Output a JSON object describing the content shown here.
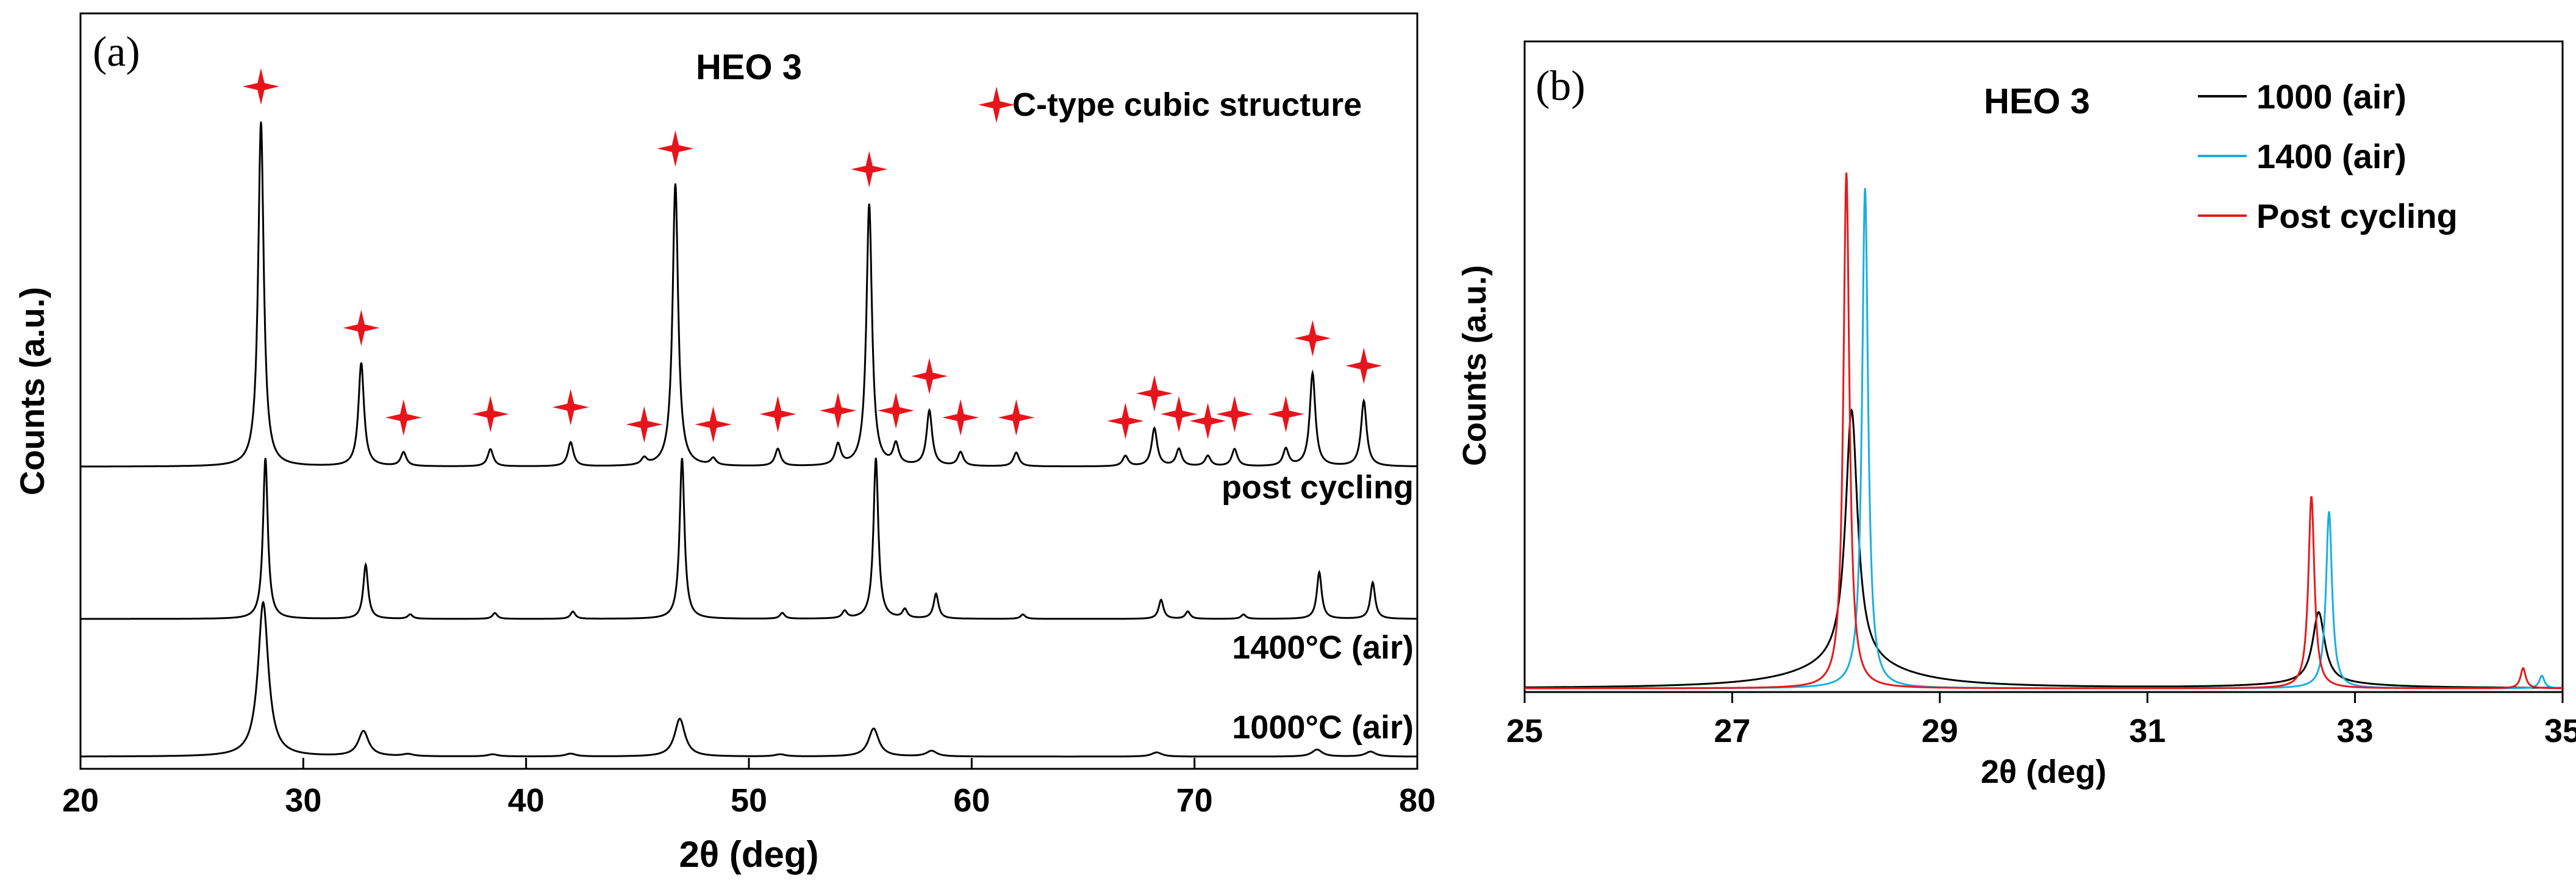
{
  "colors": {
    "black": "#000000",
    "cyan": "#1aaedc",
    "red": "#e41a1c",
    "star": "#e8141c"
  },
  "chart_data": [
    {
      "type": "line",
      "panel_label": "(a)",
      "title": "HEO 3",
      "xlabel": "2θ (deg)",
      "ylabel": "Counts (a.u.)",
      "xlim": [
        20,
        80
      ],
      "xticks": [
        "20",
        "30",
        "40",
        "50",
        "60",
        "70",
        "80"
      ],
      "grid": false,
      "marker_legend": "C-type cubic structure",
      "series": [
        {
          "name": "post cycling",
          "offset": 2.0,
          "peaks": [
            {
              "x": 28.1,
              "h": 1.0,
              "w": 0.15
            },
            {
              "x": 32.6,
              "h": 0.3,
              "w": 0.15
            },
            {
              "x": 34.5,
              "h": 0.04,
              "w": 0.15
            },
            {
              "x": 38.4,
              "h": 0.05,
              "w": 0.15
            },
            {
              "x": 42.0,
              "h": 0.07,
              "w": 0.15
            },
            {
              "x": 45.3,
              "h": 0.02,
              "w": 0.15
            },
            {
              "x": 46.7,
              "h": 0.82,
              "w": 0.15
            },
            {
              "x": 48.4,
              "h": 0.02,
              "w": 0.15
            },
            {
              "x": 51.3,
              "h": 0.05,
              "w": 0.15
            },
            {
              "x": 54.0,
              "h": 0.06,
              "w": 0.15
            },
            {
              "x": 55.4,
              "h": 0.76,
              "w": 0.15
            },
            {
              "x": 56.6,
              "h": 0.06,
              "w": 0.15
            },
            {
              "x": 58.1,
              "h": 0.16,
              "w": 0.15
            },
            {
              "x": 59.5,
              "h": 0.04,
              "w": 0.15
            },
            {
              "x": 62.0,
              "h": 0.04,
              "w": 0.15
            },
            {
              "x": 66.9,
              "h": 0.03,
              "w": 0.15
            },
            {
              "x": 68.2,
              "h": 0.11,
              "w": 0.15
            },
            {
              "x": 69.3,
              "h": 0.05,
              "w": 0.15
            },
            {
              "x": 70.6,
              "h": 0.03,
              "w": 0.15
            },
            {
              "x": 71.8,
              "h": 0.05,
              "w": 0.15
            },
            {
              "x": 74.1,
              "h": 0.05,
              "w": 0.15
            },
            {
              "x": 75.3,
              "h": 0.27,
              "w": 0.15
            },
            {
              "x": 77.6,
              "h": 0.19,
              "w": 0.15
            }
          ]
        },
        {
          "name": "1400°C (air)",
          "offset": 1.0,
          "peaks": [
            {
              "x": 28.3,
              "h": 1.1,
              "w": 0.13
            },
            {
              "x": 32.8,
              "h": 0.37,
              "w": 0.13
            },
            {
              "x": 34.8,
              "h": 0.03,
              "w": 0.13
            },
            {
              "x": 38.6,
              "h": 0.04,
              "w": 0.13
            },
            {
              "x": 42.1,
              "h": 0.05,
              "w": 0.13
            },
            {
              "x": 47.0,
              "h": 1.1,
              "w": 0.13
            },
            {
              "x": 51.5,
              "h": 0.04,
              "w": 0.13
            },
            {
              "x": 54.3,
              "h": 0.05,
              "w": 0.13
            },
            {
              "x": 55.7,
              "h": 1.1,
              "w": 0.13
            },
            {
              "x": 57.0,
              "h": 0.06,
              "w": 0.13
            },
            {
              "x": 58.4,
              "h": 0.17,
              "w": 0.13
            },
            {
              "x": 62.3,
              "h": 0.03,
              "w": 0.13
            },
            {
              "x": 68.5,
              "h": 0.13,
              "w": 0.13
            },
            {
              "x": 69.7,
              "h": 0.05,
              "w": 0.13
            },
            {
              "x": 72.2,
              "h": 0.03,
              "w": 0.13
            },
            {
              "x": 75.6,
              "h": 0.32,
              "w": 0.13
            },
            {
              "x": 78.0,
              "h": 0.25,
              "w": 0.13
            }
          ]
        },
        {
          "name": "1000°C (air)",
          "offset": 0.0,
          "peaks": [
            {
              "x": 28.2,
              "h": 1.1,
              "w": 0.28
            },
            {
              "x": 32.7,
              "h": 0.18,
              "w": 0.28
            },
            {
              "x": 34.7,
              "h": 0.015,
              "w": 0.28
            },
            {
              "x": 38.5,
              "h": 0.015,
              "w": 0.28
            },
            {
              "x": 42.0,
              "h": 0.02,
              "w": 0.28
            },
            {
              "x": 46.9,
              "h": 0.27,
              "w": 0.28
            },
            {
              "x": 51.4,
              "h": 0.015,
              "w": 0.28
            },
            {
              "x": 55.6,
              "h": 0.2,
              "w": 0.28
            },
            {
              "x": 58.2,
              "h": 0.04,
              "w": 0.28
            },
            {
              "x": 68.3,
              "h": 0.03,
              "w": 0.28
            },
            {
              "x": 75.5,
              "h": 0.05,
              "w": 0.28
            },
            {
              "x": 77.9,
              "h": 0.035,
              "w": 0.28
            }
          ]
        }
      ],
      "star_markers_x": [
        28.1,
        32.6,
        34.5,
        38.4,
        42.0,
        45.3,
        46.7,
        48.4,
        51.3,
        54.0,
        55.4,
        56.6,
        58.1,
        59.5,
        62.0,
        66.9,
        68.2,
        69.3,
        70.6,
        71.8,
        74.1,
        75.3,
        77.6
      ]
    },
    {
      "type": "line",
      "panel_label": "(b)",
      "title": "HEO 3",
      "xlabel": "2θ (deg)",
      "ylabel": "Counts (a.u.)",
      "xlim": [
        25,
        35
      ],
      "ylim": [
        0,
        1
      ],
      "xticks": [
        "25",
        "27",
        "29",
        "31",
        "33",
        "35"
      ],
      "grid": false,
      "legend": "top",
      "series": [
        {
          "name": "1000 (air)",
          "color": "#000000",
          "peaks": [
            {
              "x": 28.15,
              "h": 0.5,
              "w": 0.07,
              "tail": 0.05
            },
            {
              "x": 32.65,
              "h": 0.14,
              "w": 0.07,
              "tail": 0.01
            }
          ]
        },
        {
          "name": "1400 (air)",
          "color": "#1aaedc",
          "peaks": [
            {
              "x": 28.28,
              "h": 0.99,
              "w": 0.035,
              "tail": 0.0
            },
            {
              "x": 32.75,
              "h": 0.35,
              "w": 0.035,
              "tail": 0.0
            },
            {
              "x": 34.8,
              "h": 0.025,
              "w": 0.03,
              "tail": 0.0
            }
          ]
        },
        {
          "name": "Post cycling",
          "color": "#e41a1c",
          "peaks": [
            {
              "x": 28.1,
              "h": 1.02,
              "w": 0.035,
              "tail": 0.0
            },
            {
              "x": 32.58,
              "h": 0.38,
              "w": 0.035,
              "tail": 0.0
            },
            {
              "x": 34.62,
              "h": 0.04,
              "w": 0.03,
              "tail": 0.0
            }
          ]
        }
      ]
    }
  ]
}
